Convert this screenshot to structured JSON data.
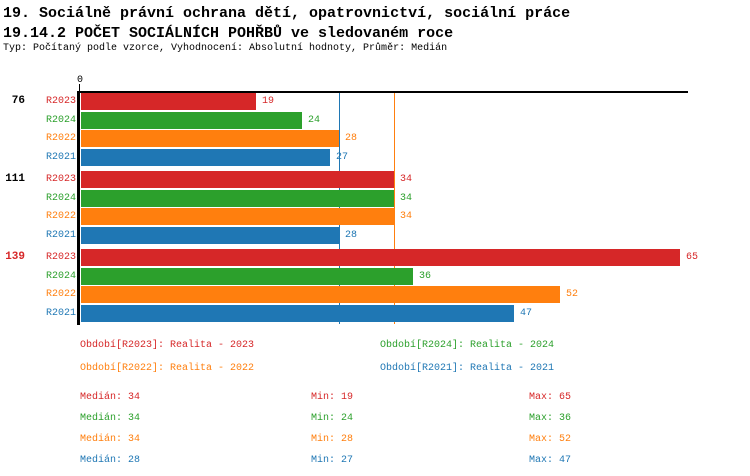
{
  "header": {
    "title_line1": "19. Sociálně právní ochrana dětí, opatrovnictví, sociální práce",
    "title_line2": "19.14.2 POČET SOCIÁLNÍCH POHŘBŮ ve sledovaném roce",
    "subtitle": "Typ: Počítaný podle vzorce, Vyhodnocení: Absolutní hodnoty, Průměr: Medián"
  },
  "colors": {
    "R2023": "#d62728",
    "R2024": "#2ca02c",
    "R2022": "#ff7f0e",
    "R2021": "#1f77b4",
    "axis": "#000000"
  },
  "chart_data": {
    "type": "bar",
    "orientation": "horizontal",
    "x_axis": {
      "origin_label": "0",
      "min": 0,
      "grid": false
    },
    "series_order": [
      "R2023",
      "R2024",
      "R2022",
      "R2021"
    ],
    "groups": [
      {
        "label": "76",
        "label_color": "#000000",
        "values": {
          "R2023": 19,
          "R2024": 24,
          "R2022": 28,
          "R2021": 27
        }
      },
      {
        "label": "111",
        "label_color": "#000000",
        "values": {
          "R2023": 34,
          "R2024": 34,
          "R2022": 34,
          "R2021": 28
        }
      },
      {
        "label": "139",
        "label_color": "#d62728",
        "values": {
          "R2023": 65,
          "R2024": 36,
          "R2022": 52,
          "R2021": 47
        }
      }
    ],
    "median_lines": [
      {
        "series": "R2022",
        "value": 34
      },
      {
        "series": "R2021",
        "value": 28
      }
    ]
  },
  "legend": {
    "items": [
      {
        "series": "R2023",
        "label": "Období[R2023]: Realita - 2023"
      },
      {
        "series": "R2024",
        "label": "Období[R2024]: Realita - 2024"
      },
      {
        "series": "R2022",
        "label": "Období[R2022]: Realita - 2022"
      },
      {
        "series": "R2021",
        "label": "Období[R2021]: Realita - 2021"
      }
    ]
  },
  "stats": {
    "columns": [
      {
        "key": "median",
        "label": "Medián"
      },
      {
        "key": "min",
        "label": "Min"
      },
      {
        "key": "max",
        "label": "Max"
      }
    ],
    "rows": [
      {
        "series": "R2023",
        "median": 34,
        "min": 19,
        "max": 65
      },
      {
        "series": "R2024",
        "median": 34,
        "min": 24,
        "max": 36
      },
      {
        "series": "R2022",
        "median": 34,
        "min": 28,
        "max": 52
      },
      {
        "series": "R2021",
        "median": 28,
        "min": 27,
        "max": 47
      }
    ]
  }
}
